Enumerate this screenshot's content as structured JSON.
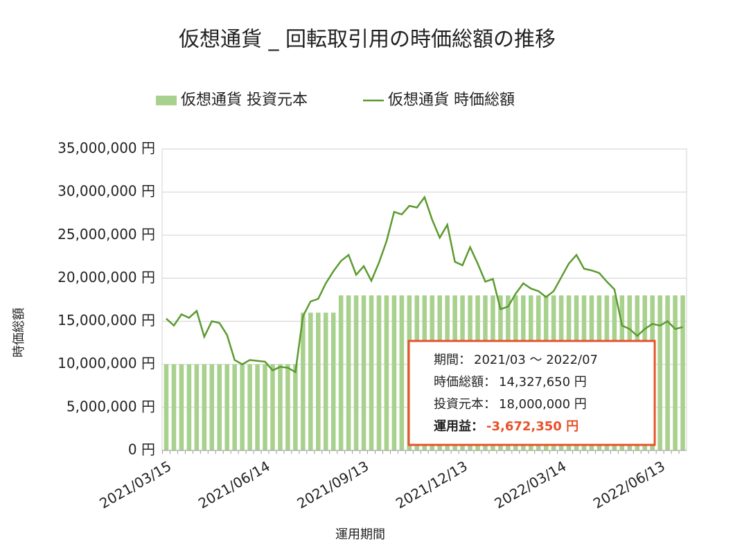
{
  "chart_data": {
    "type": "bar-line",
    "title": "仮想通貨 _ 回転取引用の時価総額の推移",
    "x_label": "運用期間",
    "y_label": "時価総額",
    "categories": [
      "2021/03/15",
      null,
      null,
      null,
      null,
      null,
      null,
      null,
      null,
      null,
      null,
      null,
      null,
      "2021/06/14",
      null,
      null,
      null,
      null,
      null,
      null,
      null,
      null,
      null,
      null,
      null,
      null,
      "2021/09/13",
      null,
      null,
      null,
      null,
      null,
      null,
      null,
      null,
      null,
      null,
      null,
      null,
      "2021/12/13",
      null,
      null,
      null,
      null,
      null,
      null,
      null,
      null,
      null,
      null,
      null,
      null,
      "2022/03/14",
      null,
      null,
      null,
      null,
      null,
      null,
      null,
      null,
      null,
      null,
      null,
      null,
      "2022/06/13",
      null,
      null,
      null
    ],
    "series": [
      {
        "name": "仮想通貨 投資元本",
        "type": "bar",
        "color": "#a9d18e",
        "values": [
          10000000,
          10000000,
          10000000,
          10000000,
          10000000,
          10000000,
          10000000,
          10000000,
          10000000,
          10000000,
          10000000,
          10000000,
          10000000,
          10000000,
          10000000,
          10000000,
          10000000,
          10000000,
          16000000,
          16000000,
          16000000,
          16000000,
          16000000,
          18000000,
          18000000,
          18000000,
          18000000,
          18000000,
          18000000,
          18000000,
          18000000,
          18000000,
          18000000,
          18000000,
          18000000,
          18000000,
          18000000,
          18000000,
          18000000,
          18000000,
          18000000,
          18000000,
          18000000,
          18000000,
          18000000,
          18000000,
          18000000,
          18000000,
          18000000,
          18000000,
          18000000,
          18000000,
          18000000,
          18000000,
          18000000,
          18000000,
          18000000,
          18000000,
          18000000,
          18000000,
          18000000,
          18000000,
          18000000,
          18000000,
          18000000,
          18000000,
          18000000,
          18000000,
          18000000
        ]
      },
      {
        "name": "仮想通貨 時価総額",
        "type": "line",
        "color": "#5b9a2f",
        "values": [
          15300000,
          14500000,
          15800000,
          15400000,
          16200000,
          13200000,
          15000000,
          14800000,
          13400000,
          10500000,
          10000000,
          10500000,
          10400000,
          10300000,
          9300000,
          9700000,
          9600000,
          9100000,
          15600000,
          17300000,
          17600000,
          19400000,
          20800000,
          22000000,
          22700000,
          20400000,
          21400000,
          19700000,
          21800000,
          24300000,
          27700000,
          27400000,
          28400000,
          28200000,
          29400000,
          26800000,
          24700000,
          26200000,
          21900000,
          21500000,
          23600000,
          21700000,
          19600000,
          19900000,
          16400000,
          16700000,
          18200000,
          19400000,
          18800000,
          18500000,
          17800000,
          18500000,
          20100000,
          21700000,
          22700000,
          21100000,
          20900000,
          20600000,
          19600000,
          18700000,
          14500000,
          14100000,
          13300000,
          14100000,
          14700000,
          14500000,
          15000000,
          14100000,
          14327650
        ]
      }
    ],
    "ylim": [
      0,
      35000000
    ],
    "yticks": [
      {
        "value": 0,
        "label": "0 円"
      },
      {
        "value": 5000000,
        "label": "5,000,000 円"
      },
      {
        "value": 10000000,
        "label": "10,000,000 円"
      },
      {
        "value": 15000000,
        "label": "15,000,000 円"
      },
      {
        "value": 20000000,
        "label": "20,000,000 円"
      },
      {
        "value": 25000000,
        "label": "25,000,000 円"
      },
      {
        "value": 30000000,
        "label": "30,000,000 円"
      },
      {
        "value": 35000000,
        "label": "35,000,000 円"
      }
    ],
    "grid": true,
    "legend": "top",
    "annotation": {
      "lines": [
        {
          "label": "期間：",
          "value": "2021/03 ～ 2022/07"
        },
        {
          "label": "時価総額：",
          "value": "14,327,650 円"
        },
        {
          "label": "投資元本：",
          "value": "18,000,000 円"
        },
        {
          "label": "運用益：",
          "value": "-3,672,350 円"
        }
      ]
    }
  }
}
